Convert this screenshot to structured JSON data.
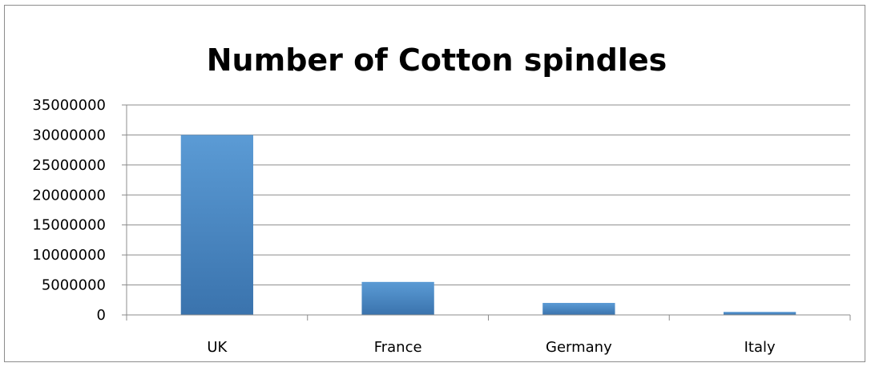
{
  "chart_data": {
    "type": "bar",
    "title": "Number of Cotton spindles",
    "xlabel": "",
    "ylabel": "",
    "categories": [
      "UK",
      "France",
      "Germany",
      "Italy"
    ],
    "series": [
      {
        "values": [
          30000000,
          5500000,
          2000000,
          500000
        ]
      }
    ],
    "ylim": [
      0,
      35000000
    ],
    "yticks": [
      "0",
      "5000000",
      "10000000",
      "15000000",
      "20000000",
      "25000000",
      "30000000",
      "35000000"
    ],
    "grid": true,
    "legend": "none",
    "colors": {
      "bar_top": "#5b9bd5",
      "bar_bottom": "#3a73ad",
      "grid": "#8c8c8c",
      "axis": "#8c8c8c",
      "text": "#000000"
    }
  }
}
